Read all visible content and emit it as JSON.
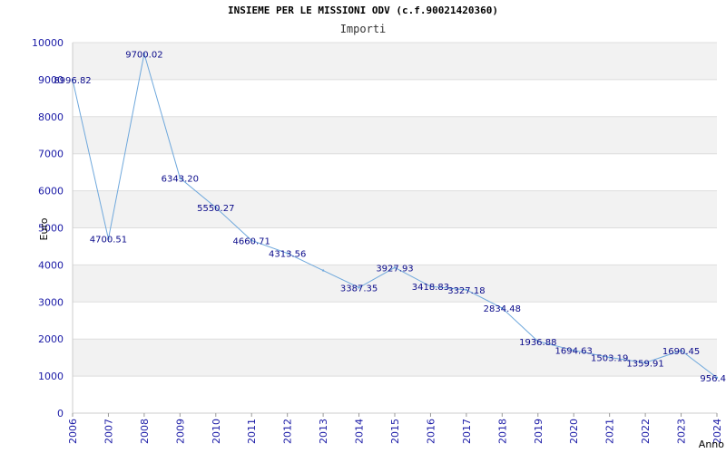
{
  "chart_data": {
    "type": "line",
    "title": "INSIEME PER LE MISSIONI ODV (c.f.90021420360)",
    "subtitle": "Importi",
    "xlabel": "Anno",
    "ylabel": "Euro",
    "ylim": [
      0,
      10000
    ],
    "yticks": [
      "0",
      "1000",
      "2000",
      "3000",
      "4000",
      "5000",
      "6000",
      "7000",
      "8000",
      "9000",
      "10000"
    ],
    "x": [
      "2006",
      "2007",
      "2008",
      "2009",
      "2010",
      "2011",
      "2012",
      "2013",
      "2014",
      "2015",
      "2016",
      "2017",
      "2018",
      "2019",
      "2020",
      "2021",
      "2022",
      "2023",
      "2024"
    ],
    "values": [
      8996.82,
      4700.51,
      9700.02,
      6343.2,
      5550.27,
      4660.71,
      4313.56,
      3850,
      3387.35,
      3927.93,
      3418.83,
      3327.18,
      2834.48,
      1936.88,
      1694.63,
      1503.19,
      1359.91,
      1690.45,
      956.4
    ],
    "data_labels": [
      "8996.82",
      "4700.51",
      "9700.02",
      "6343.20",
      "5550.27",
      "4660.71",
      "4313.56",
      "",
      "3387.35",
      "3927.93",
      "3418.83",
      "3327.18",
      "2834.48",
      "1936.88",
      "1694.63",
      "1503.19",
      "1359.91",
      "1690.45",
      "956.4"
    ],
    "grid": true,
    "line_color": "#6fa8dc",
    "band_color": "#f2f2f2",
    "tick_color": "#1a1aa6",
    "label_color": "#0a0a8a"
  }
}
